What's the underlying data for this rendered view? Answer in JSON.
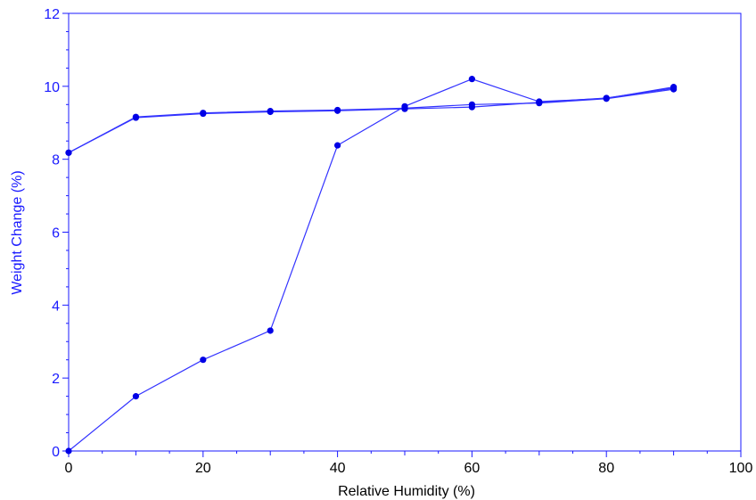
{
  "chart_data": {
    "type": "line",
    "xlabel": "Relative Humidity (%)",
    "ylabel": "Weight Change (%)",
    "xlim": [
      0,
      100
    ],
    "ylim": [
      0,
      12
    ],
    "xticks": [
      0,
      20,
      40,
      60,
      80,
      100
    ],
    "yticks": [
      0,
      2,
      4,
      6,
      8,
      10,
      12
    ],
    "x_tick_labels": [
      "0",
      "20",
      "40",
      "60",
      "80",
      "100"
    ],
    "y_tick_labels": [
      "0",
      "2",
      "4",
      "6",
      "8",
      "10",
      "12"
    ],
    "grid": false,
    "legend": "none",
    "colors": {
      "axis": "#1a1aff",
      "line": "#3333ff",
      "marker": "#0000e6",
      "xlabel": "#000000",
      "ylabel": "#1a1aff"
    },
    "series": [
      {
        "x": [
          0,
          10,
          20,
          30,
          40,
          50,
          60,
          70,
          80,
          90
        ],
        "y": [
          0.0,
          1.5,
          2.5,
          3.3,
          8.38,
          9.45,
          10.2,
          9.58,
          9.67,
          9.98
        ]
      },
      {
        "x": [
          90,
          80,
          70,
          60,
          50,
          40,
          30,
          20,
          10,
          0
        ],
        "y": [
          9.95,
          9.68,
          9.56,
          9.43,
          9.38,
          9.33,
          9.3,
          9.25,
          9.14,
          8.18
        ]
      },
      {
        "x": [
          0,
          10,
          20,
          30,
          40,
          50,
          60,
          70,
          80,
          90
        ],
        "y": [
          8.18,
          9.16,
          9.27,
          9.32,
          9.35,
          9.4,
          9.5,
          9.54,
          9.66,
          9.92
        ]
      }
    ]
  }
}
